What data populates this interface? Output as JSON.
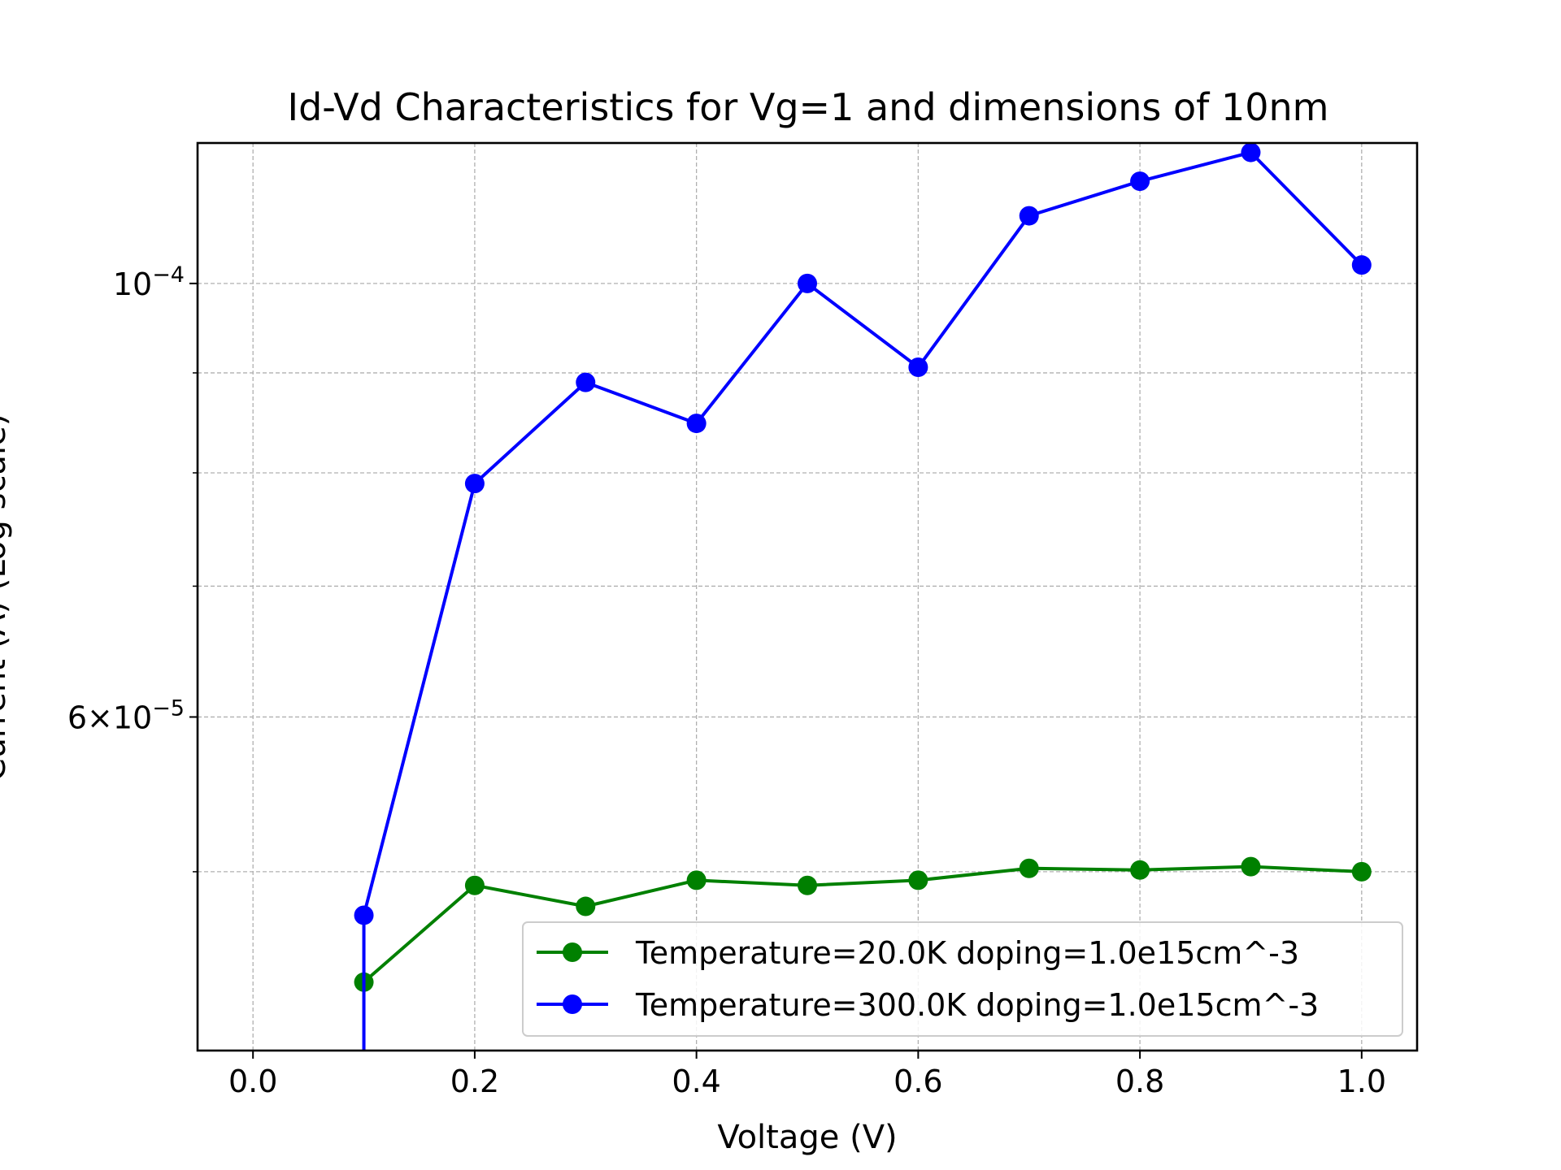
{
  "chart_data": {
    "type": "line",
    "title": "Id-Vd Characteristics for Vg=1 and dimensions of 10nm",
    "xlabel": "Voltage (V)",
    "ylabel": "Current (A) (Log scale)",
    "xlim": [
      -0.05,
      1.05
    ],
    "ylim": [
      4.05e-05,
      0.000118
    ],
    "yscale": "log",
    "grid": true,
    "legend_position": "lower-right",
    "x_ticks": [
      0.0,
      0.2,
      0.4,
      0.6,
      0.8,
      1.0
    ],
    "x_tick_labels": [
      "0.0",
      "0.2",
      "0.4",
      "0.6",
      "0.8",
      "1.0"
    ],
    "y_labeled_ticks": [
      {
        "value": 0.0001,
        "base": "10",
        "exponent": "−4"
      },
      {
        "value": 6e-05,
        "base": "6×10",
        "exponent": "−5"
      }
    ],
    "y_minor_gridlines": [
      5e-05,
      7e-05,
      8e-05,
      9e-05
    ],
    "series": [
      {
        "name": "Temperature=20.0K doping=1.0e15cm^-3",
        "color": "#008000",
        "x": [
          0.1,
          0.2,
          0.3,
          0.4,
          0.5,
          0.6,
          0.7,
          0.8,
          0.9,
          1.0
        ],
        "y": [
          4.39e-05,
          4.92e-05,
          4.8e-05,
          4.95e-05,
          4.92e-05,
          4.95e-05,
          5.02e-05,
          5.01e-05,
          5.03e-05,
          5e-05
        ]
      },
      {
        "name": "Temperature=300.0K doping=1.0e15cm^-3",
        "color": "#0000ff",
        "x": [
          0.1,
          0.2,
          0.3,
          0.4,
          0.5,
          0.6,
          0.7,
          0.8,
          0.9,
          1.0
        ],
        "y": [
          4.75e-05,
          7.9e-05,
          8.9e-05,
          8.48e-05,
          0.0001,
          9.06e-05,
          0.0001083,
          0.0001128,
          0.0001167,
          0.0001022
        ],
        "drop_below_axis_at_x": 0.1
      }
    ]
  }
}
